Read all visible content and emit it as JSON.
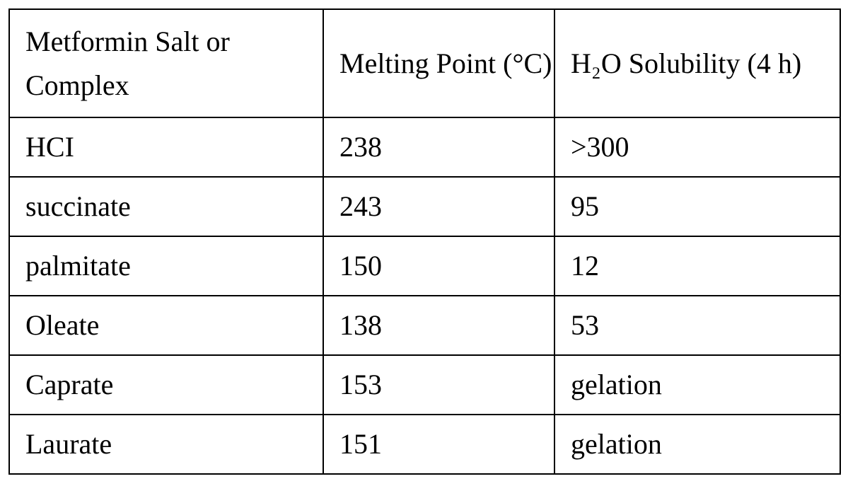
{
  "table": {
    "header": [
      "Metformin Salt or Complex",
      "Melting Point (°C)",
      "H₂O Solubility (4 h)"
    ],
    "rows": [
      [
        "HCI",
        238,
        ">300"
      ],
      [
        "succinate",
        243,
        95
      ],
      [
        "palmitate",
        150,
        12
      ],
      [
        "Oleate",
        138,
        53
      ],
      [
        "Caprate",
        153,
        "gelation"
      ],
      [
        "Laurate",
        151,
        "gelation"
      ]
    ]
  }
}
